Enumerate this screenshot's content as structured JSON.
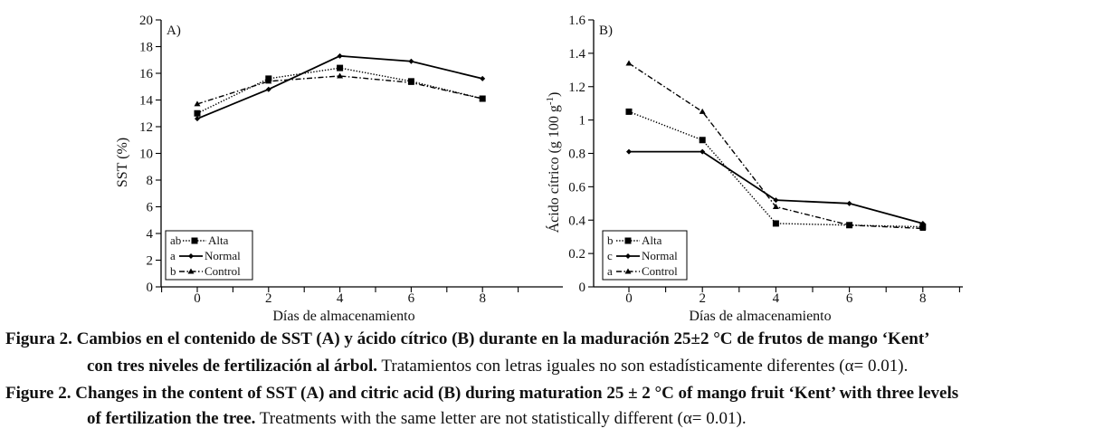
{
  "chart_data": [
    {
      "type": "line",
      "panel_label": "A)",
      "title": "",
      "xlabel": "Días de almacenamiento",
      "ylabel": "SST (%)",
      "x": [
        0,
        2,
        4,
        6,
        8
      ],
      "xticks": [
        "0",
        "2",
        "4",
        "6",
        "8"
      ],
      "ylim": [
        0,
        20
      ],
      "yticks": [
        "0",
        "2",
        "4",
        "6",
        "8",
        "10",
        "12",
        "14",
        "16",
        "18",
        "20"
      ],
      "grid": false,
      "legend_position": "bottom-left",
      "series": [
        {
          "name": "Alta",
          "letter": "ab",
          "marker": "square",
          "style": "dotted",
          "values": [
            13.0,
            15.6,
            16.4,
            15.4,
            14.1
          ]
        },
        {
          "name": "Normal",
          "letter": "a",
          "marker": "diamond",
          "style": "solid",
          "values": [
            12.6,
            14.8,
            17.3,
            16.9,
            15.6
          ]
        },
        {
          "name": "Control",
          "letter": "b",
          "marker": "triangle",
          "style": "dashdot",
          "values": [
            13.7,
            15.4,
            15.8,
            15.3,
            14.1
          ]
        }
      ]
    },
    {
      "type": "line",
      "panel_label": "B)",
      "title": "",
      "xlabel": "Días de almacenamiento",
      "ylabel": "Ácido cítrico (g 100 g",
      "ylabel_sup": "-1",
      "ylabel_end": ")",
      "x": [
        0,
        2,
        4,
        6,
        8
      ],
      "xticks": [
        "0",
        "2",
        "4",
        "6",
        "8"
      ],
      "ylim": [
        0,
        1.6
      ],
      "yticks": [
        "0",
        "0.2",
        "0.4",
        "0.6",
        "0.8",
        "1",
        "1.2",
        "1.4",
        "1.6"
      ],
      "grid": false,
      "legend_position": "bottom-left",
      "series": [
        {
          "name": "Alta",
          "letter": "b",
          "marker": "square",
          "style": "dotted",
          "values": [
            1.05,
            0.88,
            0.38,
            0.37,
            0.36
          ]
        },
        {
          "name": "Normal",
          "letter": "c",
          "marker": "diamond",
          "style": "solid",
          "values": [
            0.81,
            0.81,
            0.52,
            0.5,
            0.38
          ]
        },
        {
          "name": "Control",
          "letter": "a",
          "marker": "triangle",
          "style": "dashdot",
          "values": [
            1.34,
            1.05,
            0.48,
            0.37,
            0.35
          ]
        }
      ]
    }
  ],
  "caption": {
    "es_bold_1": "Figura 2. Cambios en el contenido de SST (A) y ácido cítrico (B) durante en la maduración 25±2 °C de frutos de mango ‘Kent’",
    "es_bold_2": "con tres niveles de fertilización al árbol.",
    "es_normal": " Tratamientos con letras iguales no son estadísticamente diferentes (α= 0.01).",
    "en_bold_1": "Figure 2. Changes in the content of SST (A) and citric acid (B) during maturation 25 ± 2 °C of mango fruit ‘Kent’ with three levels",
    "en_bold_2": "of fertilization the tree.",
    "en_normal": " Treatments with the same letter are not statistically different (α= 0.01)."
  }
}
